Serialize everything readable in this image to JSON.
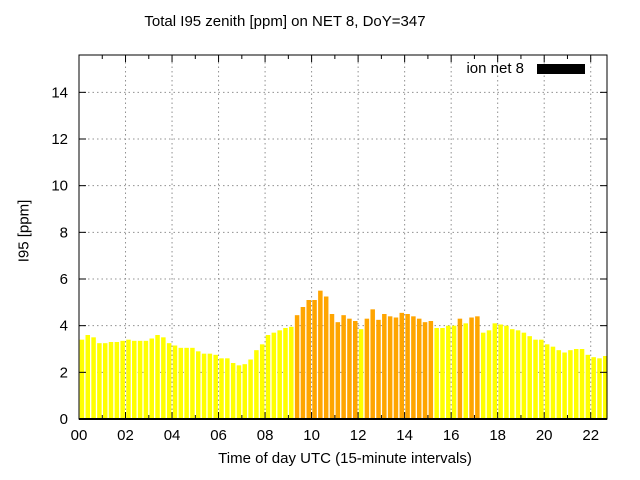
{
  "chart_data": {
    "type": "bar",
    "title": "Total I95 zenith [ppm] on NET 8, DoY=347",
    "xlabel": "Time of day UTC (15-minute intervals)",
    "ylabel": "I95 [ppm]",
    "legend": [
      {
        "label": "ion net 8",
        "swatch_color": "#000000"
      }
    ],
    "legend_position": "top-right-inside",
    "grid": true,
    "grid_style": "dotted-gray",
    "ylim": [
      0,
      15.6
    ],
    "xlim_hours": [
      0,
      22.7
    ],
    "y_ticks": [
      0,
      2,
      4,
      6,
      8,
      10,
      12,
      14
    ],
    "y_tick_labels": [
      "0",
      "2",
      "4",
      "6",
      "8",
      "10",
      "12",
      "14"
    ],
    "x_tick_hours": [
      0,
      2,
      4,
      6,
      8,
      10,
      12,
      14,
      16,
      18,
      20,
      22
    ],
    "x_tick_labels": [
      "00",
      "02",
      "04",
      "06",
      "08",
      "10",
      "12",
      "14",
      "16",
      "18",
      "20",
      "22"
    ],
    "x_minor_tick_every_hours": 1,
    "interval_minutes": 15,
    "colors": {
      "yellow": "#ffff00",
      "orange": "#ffa500",
      "axis": "#000000",
      "grid": "#909090"
    },
    "bars": [
      {
        "time": "00:00",
        "value": 3.4,
        "color": "#ffff00"
      },
      {
        "time": "00:15",
        "value": 3.6,
        "color": "#ffff00"
      },
      {
        "time": "00:30",
        "value": 3.5,
        "color": "#ffff00"
      },
      {
        "time": "00:45",
        "value": 3.25,
        "color": "#ffff00"
      },
      {
        "time": "01:00",
        "value": 3.25,
        "color": "#ffff00"
      },
      {
        "time": "01:15",
        "value": 3.3,
        "color": "#ffff00"
      },
      {
        "time": "01:30",
        "value": 3.3,
        "color": "#ffff00"
      },
      {
        "time": "01:45",
        "value": 3.35,
        "color": "#ffff00"
      },
      {
        "time": "02:00",
        "value": 3.4,
        "color": "#ffff00"
      },
      {
        "time": "02:15",
        "value": 3.35,
        "color": "#ffff00"
      },
      {
        "time": "02:30",
        "value": 3.35,
        "color": "#ffff00"
      },
      {
        "time": "02:45",
        "value": 3.35,
        "color": "#ffff00"
      },
      {
        "time": "03:00",
        "value": 3.45,
        "color": "#ffff00"
      },
      {
        "time": "03:15",
        "value": 3.6,
        "color": "#ffff00"
      },
      {
        "time": "03:30",
        "value": 3.5,
        "color": "#ffff00"
      },
      {
        "time": "03:45",
        "value": 3.25,
        "color": "#ffff00"
      },
      {
        "time": "04:00",
        "value": 3.15,
        "color": "#ffff00"
      },
      {
        "time": "04:15",
        "value": 3.05,
        "color": "#ffff00"
      },
      {
        "time": "04:30",
        "value": 3.05,
        "color": "#ffff00"
      },
      {
        "time": "04:45",
        "value": 3.05,
        "color": "#ffff00"
      },
      {
        "time": "05:00",
        "value": 2.9,
        "color": "#ffff00"
      },
      {
        "time": "05:15",
        "value": 2.8,
        "color": "#ffff00"
      },
      {
        "time": "05:30",
        "value": 2.8,
        "color": "#ffff00"
      },
      {
        "time": "05:45",
        "value": 2.75,
        "color": "#ffff00"
      },
      {
        "time": "06:00",
        "value": 2.6,
        "color": "#ffff00"
      },
      {
        "time": "06:15",
        "value": 2.6,
        "color": "#ffff00"
      },
      {
        "time": "06:30",
        "value": 2.4,
        "color": "#ffff00"
      },
      {
        "time": "06:45",
        "value": 2.3,
        "color": "#ffff00"
      },
      {
        "time": "07:00",
        "value": 2.35,
        "color": "#ffff00"
      },
      {
        "time": "07:15",
        "value": 2.55,
        "color": "#ffff00"
      },
      {
        "time": "07:30",
        "value": 2.95,
        "color": "#ffff00"
      },
      {
        "time": "07:45",
        "value": 3.2,
        "color": "#ffff00"
      },
      {
        "time": "08:00",
        "value": 3.6,
        "color": "#ffff00"
      },
      {
        "time": "08:15",
        "value": 3.7,
        "color": "#ffff00"
      },
      {
        "time": "08:30",
        "value": 3.8,
        "color": "#ffff00"
      },
      {
        "time": "08:45",
        "value": 3.9,
        "color": "#ffff00"
      },
      {
        "time": "09:00",
        "value": 3.95,
        "color": "#ffff00"
      },
      {
        "time": "09:15",
        "value": 4.45,
        "color": "#ffa500"
      },
      {
        "time": "09:30",
        "value": 4.8,
        "color": "#ffa500"
      },
      {
        "time": "09:45",
        "value": 5.1,
        "color": "#ffa500"
      },
      {
        "time": "10:00",
        "value": 5.1,
        "color": "#ffa500"
      },
      {
        "time": "10:15",
        "value": 5.5,
        "color": "#ffa500"
      },
      {
        "time": "10:30",
        "value": 5.25,
        "color": "#ffa500"
      },
      {
        "time": "10:45",
        "value": 4.5,
        "color": "#ffa500"
      },
      {
        "time": "11:00",
        "value": 4.15,
        "color": "#ffa500"
      },
      {
        "time": "11:15",
        "value": 4.45,
        "color": "#ffa500"
      },
      {
        "time": "11:30",
        "value": 4.3,
        "color": "#ffa500"
      },
      {
        "time": "11:45",
        "value": 4.2,
        "color": "#ffa500"
      },
      {
        "time": "12:00",
        "value": 3.85,
        "color": "#ffff00"
      },
      {
        "time": "12:15",
        "value": 4.3,
        "color": "#ffa500"
      },
      {
        "time": "12:30",
        "value": 4.7,
        "color": "#ffa500"
      },
      {
        "time": "12:45",
        "value": 4.25,
        "color": "#ffa500"
      },
      {
        "time": "13:00",
        "value": 4.5,
        "color": "#ffa500"
      },
      {
        "time": "13:15",
        "value": 4.4,
        "color": "#ffa500"
      },
      {
        "time": "13:30",
        "value": 4.35,
        "color": "#ffa500"
      },
      {
        "time": "13:45",
        "value": 4.55,
        "color": "#ffa500"
      },
      {
        "time": "14:00",
        "value": 4.5,
        "color": "#ffa500"
      },
      {
        "time": "14:15",
        "value": 4.4,
        "color": "#ffa500"
      },
      {
        "time": "14:30",
        "value": 4.3,
        "color": "#ffa500"
      },
      {
        "time": "14:45",
        "value": 4.15,
        "color": "#ffa500"
      },
      {
        "time": "15:00",
        "value": 4.2,
        "color": "#ffa500"
      },
      {
        "time": "15:15",
        "value": 3.9,
        "color": "#ffff00"
      },
      {
        "time": "15:30",
        "value": 3.9,
        "color": "#ffff00"
      },
      {
        "time": "15:45",
        "value": 4.0,
        "color": "#ffff00"
      },
      {
        "time": "16:00",
        "value": 4.0,
        "color": "#ffff00"
      },
      {
        "time": "16:15",
        "value": 4.3,
        "color": "#ffa500"
      },
      {
        "time": "16:30",
        "value": 4.1,
        "color": "#ffff00"
      },
      {
        "time": "16:45",
        "value": 4.35,
        "color": "#ffa500"
      },
      {
        "time": "17:00",
        "value": 4.4,
        "color": "#ffa500"
      },
      {
        "time": "17:15",
        "value": 3.7,
        "color": "#ffff00"
      },
      {
        "time": "17:30",
        "value": 3.8,
        "color": "#ffff00"
      },
      {
        "time": "17:45",
        "value": 4.1,
        "color": "#ffff00"
      },
      {
        "time": "18:00",
        "value": 4.05,
        "color": "#ffff00"
      },
      {
        "time": "18:15",
        "value": 4.0,
        "color": "#ffff00"
      },
      {
        "time": "18:30",
        "value": 3.85,
        "color": "#ffff00"
      },
      {
        "time": "18:45",
        "value": 3.8,
        "color": "#ffff00"
      },
      {
        "time": "19:00",
        "value": 3.7,
        "color": "#ffff00"
      },
      {
        "time": "19:15",
        "value": 3.55,
        "color": "#ffff00"
      },
      {
        "time": "19:30",
        "value": 3.4,
        "color": "#ffff00"
      },
      {
        "time": "19:45",
        "value": 3.4,
        "color": "#ffff00"
      },
      {
        "time": "20:00",
        "value": 3.2,
        "color": "#ffff00"
      },
      {
        "time": "20:15",
        "value": 3.1,
        "color": "#ffff00"
      },
      {
        "time": "20:30",
        "value": 2.95,
        "color": "#ffff00"
      },
      {
        "time": "20:45",
        "value": 2.85,
        "color": "#ffff00"
      },
      {
        "time": "21:00",
        "value": 2.95,
        "color": "#ffff00"
      },
      {
        "time": "21:15",
        "value": 3.0,
        "color": "#ffff00"
      },
      {
        "time": "21:30",
        "value": 3.0,
        "color": "#ffff00"
      },
      {
        "time": "21:45",
        "value": 2.75,
        "color": "#ffff00"
      },
      {
        "time": "22:00",
        "value": 2.65,
        "color": "#ffff00"
      },
      {
        "time": "22:15",
        "value": 2.6,
        "color": "#ffff00"
      },
      {
        "time": "22:30",
        "value": 2.7,
        "color": "#ffff00"
      }
    ]
  }
}
